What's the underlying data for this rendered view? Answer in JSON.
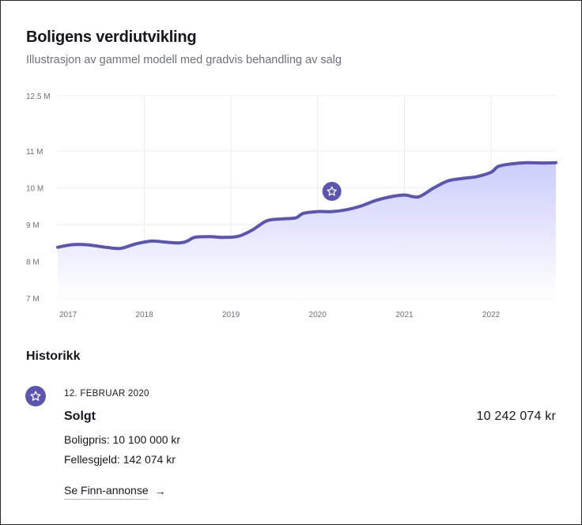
{
  "header": {
    "title": "Boligens verdiutvikling",
    "subtitle": "Illustrasjon av gammel modell med gradvis behandling av salg"
  },
  "chart_data": {
    "type": "area",
    "title": "Boligens verdiutvikling",
    "xlabel": "",
    "ylabel": "",
    "ylim": [
      7,
      12.5
    ],
    "yticks": [
      7,
      8,
      9,
      10,
      11,
      12.5
    ],
    "ytick_labels": [
      "7 M",
      "8 M",
      "9 M",
      "10 M",
      "11 M",
      "12.5  M"
    ],
    "xlim": [
      "2017-01-01",
      "2022-10-01"
    ],
    "xticks": [
      "2017-01-01",
      "2018-01-01",
      "2019-01-01",
      "2020-01-01",
      "2021-01-01",
      "2022-01-01"
    ],
    "xtick_labels": [
      "2017",
      "2018",
      "2019",
      "2020",
      "2021",
      "2022"
    ],
    "grid": true,
    "legend": "none",
    "line_color": "#5b54b0",
    "fill_top_color": "#cccdfb",
    "fill_bottom_color": "#ffffff",
    "series": [
      {
        "x": [
          "2017-01-01",
          "2017-03-01",
          "2017-05-01",
          "2017-07-01",
          "2017-09-01",
          "2017-10-01",
          "2017-12-01",
          "2018-02-01",
          "2018-04-01",
          "2018-06-01",
          "2018-07-01",
          "2018-08-01",
          "2018-10-01",
          "2018-12-01",
          "2019-02-01",
          "2019-04-01",
          "2019-06-01",
          "2019-08-01",
          "2019-10-01",
          "2019-11-01",
          "2020-01-01",
          "2020-03-01",
          "2020-05-01",
          "2020-07-01",
          "2020-09-01",
          "2020-11-01",
          "2021-01-01",
          "2021-03-01",
          "2021-05-01",
          "2021-07-01",
          "2021-09-01",
          "2021-11-01",
          "2022-01-01",
          "2022-02-01",
          "2022-04-01",
          "2022-06-01",
          "2022-08-01",
          "2022-10-01"
        ],
        "values": [
          8.38,
          8.45,
          8.45,
          8.4,
          8.35,
          8.36,
          8.48,
          8.55,
          8.52,
          8.5,
          8.55,
          8.65,
          8.67,
          8.65,
          8.68,
          8.85,
          9.1,
          9.15,
          9.18,
          9.3,
          9.35,
          9.35,
          9.4,
          9.5,
          9.65,
          9.75,
          9.8,
          9.75,
          9.98,
          10.18,
          10.25,
          10.3,
          10.42,
          10.58,
          10.65,
          10.68,
          10.67,
          10.68
        ]
      }
    ],
    "marker": {
      "x": "2020-03-01",
      "y": 9.9,
      "icon": "star-icon"
    }
  },
  "history": {
    "heading": "Historikk",
    "events": [
      {
        "icon": "star-icon",
        "date": "12. FEBRUAR 2020",
        "title": "Solgt",
        "amount": "10 242 074 kr",
        "details": [
          "Boligpris: 10 100 000 kr",
          "Fellesgjeld: 142 074 kr"
        ],
        "link_label": "Se Finn-annonse",
        "link_icon": "arrow-right-icon"
      }
    ]
  }
}
